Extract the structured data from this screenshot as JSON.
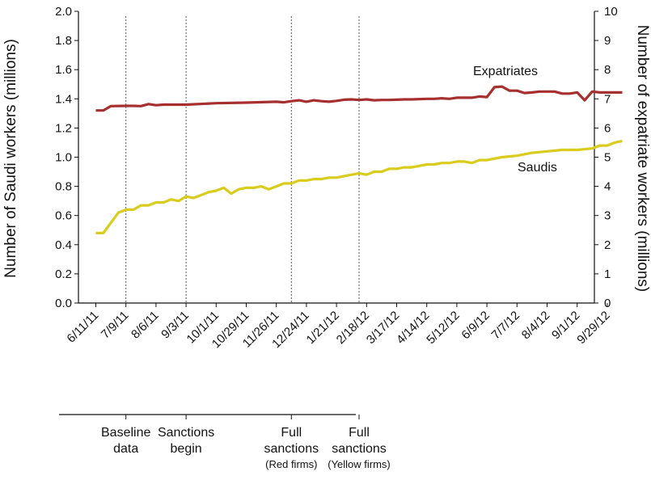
{
  "chart_data": {
    "type": "line",
    "left_axis": {
      "label": "Number of Saudi workers (millions)",
      "min": 0,
      "max": 2.0,
      "ticks": [
        "0.0",
        "0.2",
        "0.4",
        "0.6",
        "0.8",
        "1.0",
        "1.2",
        "1.4",
        "1.6",
        "1.8",
        "2.0"
      ]
    },
    "right_axis": {
      "label": "Number of expatriate workers (millions)",
      "min": 0,
      "max": 10,
      "ticks": [
        "0",
        "1",
        "2",
        "3",
        "4",
        "5",
        "6",
        "7",
        "8",
        "9",
        "10"
      ]
    },
    "x_tick_labels": [
      "6/11/11",
      "7/9/11",
      "8/6/11",
      "9/3/11",
      "10/1/11",
      "10/29/11",
      "11/26/11",
      "12/24/11",
      "1/21/12",
      "2/18/12",
      "3/17/12",
      "4/14/12",
      "5/12/12",
      "6/9/12",
      "7/7/12",
      "8/4/12",
      "9/1/12",
      "9/29/12"
    ],
    "grid": false,
    "series": [
      {
        "name": "Expatriates",
        "axis": "right",
        "color": "#a6302f",
        "x": [
          0,
          0.25,
          0.5,
          1,
          1.25,
          1.5,
          1.75,
          2,
          2.25,
          2.5,
          3,
          4,
          5,
          6,
          6.25,
          6.5,
          6.75,
          7,
          7.25,
          7.5,
          7.75,
          8,
          8.25,
          8.5,
          8.75,
          9,
          9.25,
          9.5,
          9.75,
          10,
          10.25,
          10.5,
          11,
          11.25,
          11.5,
          11.75,
          12,
          12.25,
          12.5,
          12.75,
          13,
          13.25,
          13.5,
          13.75,
          14,
          14.25,
          14.5,
          14.75,
          15,
          15.25,
          15.5,
          15.75,
          16,
          16.25,
          16.5,
          16.75,
          17,
          17.25,
          17.5
        ],
        "values": [
          6.6,
          6.6,
          6.75,
          6.76,
          6.76,
          6.75,
          6.82,
          6.78,
          6.8,
          6.8,
          6.8,
          6.85,
          6.87,
          6.9,
          6.88,
          6.92,
          6.95,
          6.9,
          6.95,
          6.92,
          6.9,
          6.93,
          6.97,
          6.98,
          6.96,
          6.98,
          6.95,
          6.96,
          6.96,
          6.97,
          6.98,
          6.98,
          7.0,
          7.0,
          7.02,
          7.0,
          7.04,
          7.04,
          7.04,
          7.08,
          7.06,
          7.4,
          7.42,
          7.28,
          7.28,
          7.2,
          7.22,
          7.25,
          7.25,
          7.25,
          7.18,
          7.18,
          7.22,
          6.95,
          7.25,
          7.22,
          7.22,
          7.22,
          7.22
        ]
      },
      {
        "name": "Saudis",
        "axis": "left",
        "color": "#d9cc1d",
        "x": [
          0,
          0.25,
          0.5,
          0.75,
          1,
          1.25,
          1.5,
          1.75,
          2,
          2.25,
          2.5,
          2.75,
          3,
          3.25,
          3.5,
          3.75,
          4,
          4.25,
          4.5,
          4.75,
          5,
          5.25,
          5.5,
          5.75,
          6,
          6.25,
          6.5,
          6.75,
          7,
          7.25,
          7.5,
          7.75,
          8,
          8.25,
          8.5,
          8.75,
          9,
          9.25,
          9.5,
          9.75,
          10,
          10.25,
          10.5,
          10.75,
          11,
          11.25,
          11.5,
          11.75,
          12,
          12.25,
          12.5,
          12.75,
          13,
          13.5,
          14,
          14.5,
          15,
          15.5,
          16,
          16.5,
          16.75,
          17,
          17.25,
          17.5
        ],
        "values": [
          0.48,
          0.48,
          0.55,
          0.62,
          0.64,
          0.64,
          0.67,
          0.67,
          0.69,
          0.69,
          0.71,
          0.7,
          0.73,
          0.72,
          0.74,
          0.76,
          0.77,
          0.79,
          0.75,
          0.78,
          0.79,
          0.79,
          0.8,
          0.78,
          0.8,
          0.82,
          0.82,
          0.84,
          0.84,
          0.85,
          0.85,
          0.86,
          0.86,
          0.87,
          0.88,
          0.89,
          0.88,
          0.9,
          0.9,
          0.92,
          0.92,
          0.93,
          0.93,
          0.94,
          0.95,
          0.95,
          0.96,
          0.96,
          0.97,
          0.97,
          0.96,
          0.98,
          0.98,
          1.0,
          1.01,
          1.03,
          1.04,
          1.05,
          1.05,
          1.06,
          1.08,
          1.08,
          1.1,
          1.11
        ]
      }
    ],
    "events": [
      {
        "x": 1,
        "line1": "Baseline",
        "line2": "data",
        "line3": ""
      },
      {
        "x": 3,
        "line1": "Sanctions",
        "line2": "begin",
        "line3": ""
      },
      {
        "x": 6.5,
        "line1": "Full",
        "line2": "sanctions",
        "line3": "(Red firms)"
      },
      {
        "x": 8.75,
        "line1": "Full",
        "line2": "sanctions",
        "line3": "(Yellow firms)"
      }
    ]
  }
}
